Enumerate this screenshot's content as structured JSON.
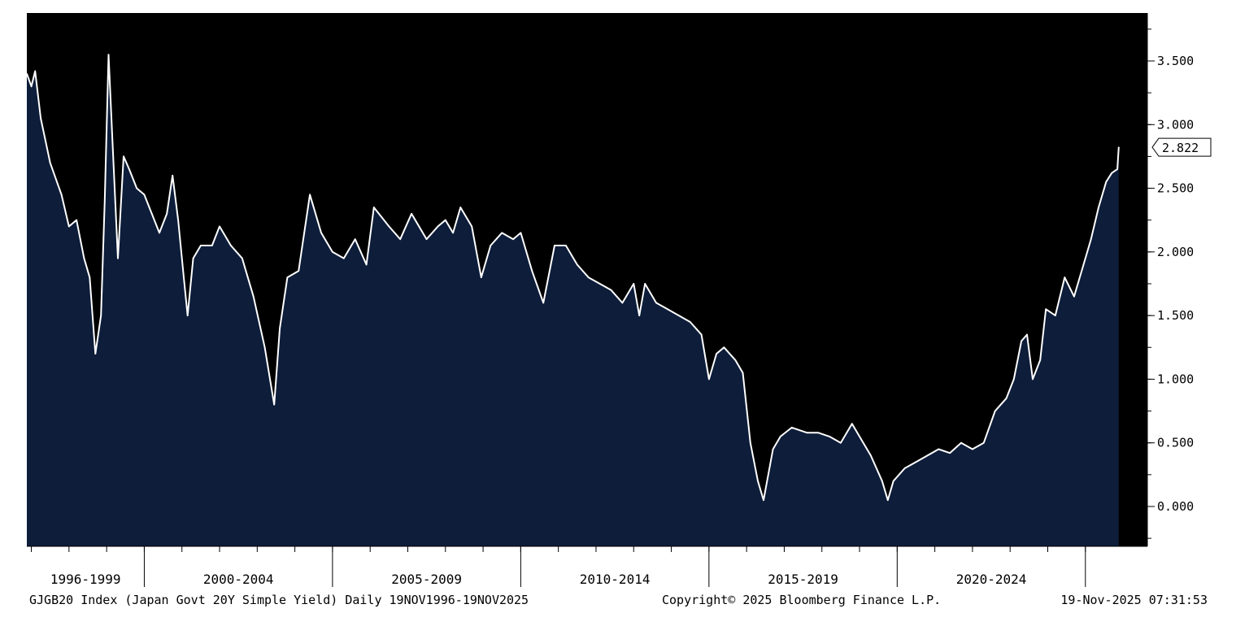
{
  "chart_data": {
    "type": "area",
    "series": [
      {
        "name": "GJGB20 Index",
        "points": [
          [
            "1996.88",
            3.4
          ],
          [
            "1997.00",
            3.3
          ],
          [
            "1997.10",
            3.42
          ],
          [
            "1997.25",
            3.05
          ],
          [
            "1997.50",
            2.7
          ],
          [
            "1997.80",
            2.45
          ],
          [
            "1998.00",
            2.2
          ],
          [
            "1998.20",
            2.25
          ],
          [
            "1998.40",
            1.95
          ],
          [
            "1998.55",
            1.8
          ],
          [
            "1998.70",
            1.2
          ],
          [
            "1998.85",
            1.5
          ],
          [
            "1998.95",
            2.4
          ],
          [
            "1999.05",
            3.55
          ],
          [
            "1999.15",
            2.9
          ],
          [
            "1999.30",
            1.95
          ],
          [
            "1999.45",
            2.75
          ],
          [
            "1999.60",
            2.65
          ],
          [
            "1999.80",
            2.5
          ],
          [
            "2000.00",
            2.45
          ],
          [
            "2000.20",
            2.3
          ],
          [
            "2000.40",
            2.15
          ],
          [
            "2000.60",
            2.3
          ],
          [
            "2000.75",
            2.6
          ],
          [
            "2000.90",
            2.25
          ],
          [
            "2001.05",
            1.8
          ],
          [
            "2001.15",
            1.5
          ],
          [
            "2001.30",
            1.95
          ],
          [
            "2001.50",
            2.05
          ],
          [
            "2001.80",
            2.05
          ],
          [
            "2002.00",
            2.2
          ],
          [
            "2002.30",
            2.05
          ],
          [
            "2002.60",
            1.95
          ],
          [
            "2002.90",
            1.65
          ],
          [
            "2003.20",
            1.25
          ],
          [
            "2003.45",
            0.8
          ],
          [
            "2003.60",
            1.4
          ],
          [
            "2003.80",
            1.8
          ],
          [
            "2004.10",
            1.85
          ],
          [
            "2004.40",
            2.45
          ],
          [
            "2004.70",
            2.15
          ],
          [
            "2005.00",
            2.0
          ],
          [
            "2005.30",
            1.95
          ],
          [
            "2005.60",
            2.1
          ],
          [
            "2005.90",
            1.9
          ],
          [
            "2006.10",
            2.35
          ],
          [
            "2006.50",
            2.2
          ],
          [
            "2006.80",
            2.1
          ],
          [
            "2007.10",
            2.3
          ],
          [
            "2007.50",
            2.1
          ],
          [
            "2007.80",
            2.2
          ],
          [
            "2008.00",
            2.25
          ],
          [
            "2008.20",
            2.15
          ],
          [
            "2008.40",
            2.35
          ],
          [
            "2008.70",
            2.2
          ],
          [
            "2008.95",
            1.8
          ],
          [
            "2009.20",
            2.05
          ],
          [
            "2009.50",
            2.15
          ],
          [
            "2009.80",
            2.1
          ],
          [
            "2010.00",
            2.15
          ],
          [
            "2010.30",
            1.85
          ],
          [
            "2010.60",
            1.6
          ],
          [
            "2010.90",
            2.05
          ],
          [
            "2011.20",
            2.05
          ],
          [
            "2011.50",
            1.9
          ],
          [
            "2011.80",
            1.8
          ],
          [
            "2012.10",
            1.75
          ],
          [
            "2012.40",
            1.7
          ],
          [
            "2012.70",
            1.6
          ],
          [
            "2013.00",
            1.75
          ],
          [
            "2013.15",
            1.5
          ],
          [
            "2013.30",
            1.75
          ],
          [
            "2013.60",
            1.6
          ],
          [
            "2013.90",
            1.55
          ],
          [
            "2014.20",
            1.5
          ],
          [
            "2014.50",
            1.45
          ],
          [
            "2014.80",
            1.35
          ],
          [
            "2015.00",
            1.0
          ],
          [
            "2015.20",
            1.2
          ],
          [
            "2015.40",
            1.25
          ],
          [
            "2015.70",
            1.15
          ],
          [
            "2015.90",
            1.05
          ],
          [
            "2016.10",
            0.5
          ],
          [
            "2016.30",
            0.2
          ],
          [
            "2016.45",
            0.05
          ],
          [
            "2016.70",
            0.45
          ],
          [
            "2016.90",
            0.55
          ],
          [
            "2017.20",
            0.62
          ],
          [
            "2017.60",
            0.58
          ],
          [
            "2017.90",
            0.58
          ],
          [
            "2018.20",
            0.55
          ],
          [
            "2018.50",
            0.5
          ],
          [
            "2018.80",
            0.65
          ],
          [
            "2019.00",
            0.55
          ],
          [
            "2019.30",
            0.4
          ],
          [
            "2019.60",
            0.2
          ],
          [
            "2019.75",
            0.05
          ],
          [
            "2019.90",
            0.2
          ],
          [
            "2020.20",
            0.3
          ],
          [
            "2020.50",
            0.35
          ],
          [
            "2020.80",
            0.4
          ],
          [
            "2021.10",
            0.45
          ],
          [
            "2021.40",
            0.42
          ],
          [
            "2021.70",
            0.5
          ],
          [
            "2022.00",
            0.45
          ],
          [
            "2022.30",
            0.5
          ],
          [
            "2022.60",
            0.75
          ],
          [
            "2022.90",
            0.85
          ],
          [
            "2023.10",
            1.0
          ],
          [
            "2023.30",
            1.3
          ],
          [
            "2023.45",
            1.35
          ],
          [
            "2023.60",
            1.0
          ],
          [
            "2023.80",
            1.15
          ],
          [
            "2023.95",
            1.55
          ],
          [
            "2024.20",
            1.5
          ],
          [
            "2024.45",
            1.8
          ],
          [
            "2024.70",
            1.65
          ],
          [
            "2024.95",
            1.9
          ],
          [
            "2025.15",
            2.1
          ],
          [
            "2025.35",
            2.35
          ],
          [
            "2025.55",
            2.55
          ],
          [
            "2025.70",
            2.62
          ],
          [
            "2025.85",
            2.65
          ],
          [
            "2025.885",
            2.822
          ]
        ]
      }
    ],
    "xlim": [
      "1996.88",
      "2025.89"
    ],
    "ylim": [
      -0.3,
      3.85
    ],
    "yticks": [
      "3.500",
      "3.000",
      "2.500",
      "2.000",
      "1.500",
      "1.000",
      "0.500",
      "0.000"
    ],
    "x_groups": [
      {
        "label": "1996-1999",
        "from": "1996.88",
        "to": "2000.00"
      },
      {
        "label": "2000-2004",
        "from": "2000.00",
        "to": "2005.00"
      },
      {
        "label": "2005-2009",
        "from": "2005.00",
        "to": "2010.00"
      },
      {
        "label": "2010-2014",
        "from": "2010.00",
        "to": "2015.00"
      },
      {
        "label": "2015-2019",
        "from": "2015.00",
        "to": "2020.00"
      },
      {
        "label": "2020-2024",
        "from": "2020.00",
        "to": "2025.00"
      }
    ],
    "last_value_label": "2.822",
    "grid": false,
    "colors": {
      "background": "#000000",
      "area_fill": "#0d1d3a",
      "line": "#ffffff",
      "axis": "#000000"
    }
  },
  "footer": {
    "left": "GJGB20 Index (Japan Govt 20Y Simple Yield) Daily 19NOV1996-19NOV2025",
    "center": "Copyright© 2025 Bloomberg Finance L.P.",
    "right": "19-Nov-2025 07:31:53"
  }
}
